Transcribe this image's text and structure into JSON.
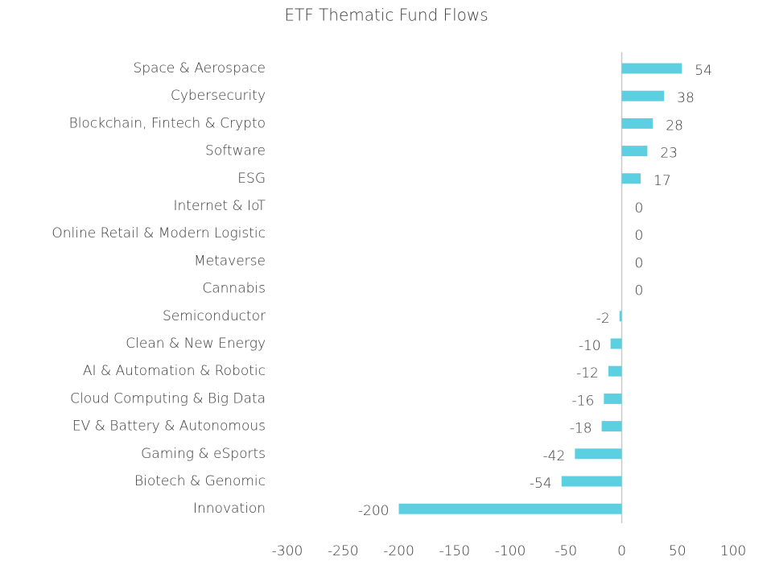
{
  "chart_data": {
    "type": "bar",
    "orientation": "horizontal",
    "title": "ETF Thematic Fund Flows",
    "categories": [
      "Space & Aerospace",
      "Cybersecurity",
      "Blockchain, Fintech & Crypto",
      "Software",
      "ESG",
      "Internet & IoT",
      "Online Retail & Modern Logistic",
      "Metaverse",
      "Cannabis",
      "Semiconductor",
      "Clean & New Energy",
      "AI & Automation & Robotic",
      "Cloud Computing & Big Data",
      "EV & Battery & Autonomous",
      "Gaming & eSports",
      "Biotech & Genomic",
      "Innovation"
    ],
    "values": [
      54,
      38,
      28,
      23,
      17,
      0,
      0,
      0,
      0,
      -2,
      -10,
      -12,
      -16,
      -18,
      -42,
      -54,
      -200
    ],
    "color": "#5ccfe0",
    "xlim": [
      -300,
      100
    ],
    "xticks": [
      -300,
      -250,
      -200,
      -150,
      -100,
      -50,
      0,
      50,
      100
    ],
    "grid": false
  }
}
